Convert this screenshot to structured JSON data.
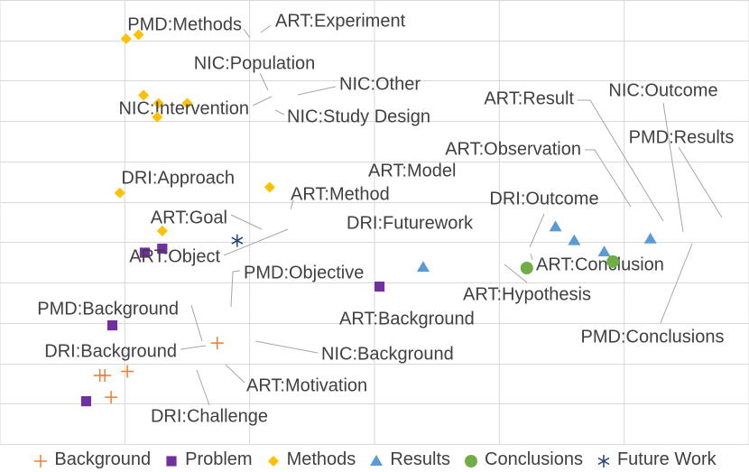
{
  "chart_data": {
    "type": "scatter",
    "title": "",
    "xlabel": "",
    "ylabel": "",
    "xlim": [
      -1,
      5
    ],
    "ylim": [
      -2.5,
      3
    ],
    "grid": {
      "horizontal": true,
      "vertical": true
    },
    "legend_position": "bottom",
    "colors": {
      "Background": "#ED7D31",
      "Problem": "#7030A0",
      "Methods": "#FFC000",
      "Results": "#5B9BD5",
      "Conclusions": "#70AD47",
      "Future Work": "#264478",
      "grid": "#D9D9D9",
      "leader": "#A6A6A6",
      "text": "#404040"
    },
    "series": [
      {
        "name": "Background",
        "marker": "plus",
        "points": [
          {
            "label": "ART:Background",
            "x": 0.74,
            "y": -1.25
          },
          {
            "label": "NIC:Background",
            "x": 0.02,
            "y": -1.6
          },
          {
            "label": "PMD:Background",
            "x": -0.16,
            "y": -1.65
          },
          {
            "label": "DRI:Background",
            "x": -0.2,
            "y": -1.65
          },
          {
            "label": "ART:Motivation",
            "x": -0.11,
            "y": -1.92
          }
        ]
      },
      {
        "name": "Problem",
        "marker": "square",
        "points": [
          {
            "label": "ART:Goal",
            "x": 0.16,
            "y": -0.13
          },
          {
            "label": "ART:Object",
            "x": 0.3,
            "y": -0.08
          },
          {
            "label": "PMD:Objective",
            "x": -0.1,
            "y": -1.03
          },
          {
            "label": "DRI:Challenge",
            "x": -0.31,
            "y": -1.97
          },
          {
            "label": "ART:Hypothesis",
            "x": 2.04,
            "y": -0.55
          }
        ]
      },
      {
        "name": "Methods",
        "marker": "diamond",
        "points": [
          {
            "label": "PMD:Methods",
            "x": 0.01,
            "y": 2.52
          },
          {
            "label": "ART:Experiment",
            "x": 0.11,
            "y": 2.57
          },
          {
            "label": "NIC:Population",
            "x": 0.15,
            "y": 1.82
          },
          {
            "label": "NIC:Other",
            "x": 0.5,
            "y": 1.72
          },
          {
            "label": "NIC:Intervention",
            "x": 0.27,
            "y": 1.72
          },
          {
            "label": "NIC:Study Design",
            "x": 0.26,
            "y": 1.55
          },
          {
            "label": "DRI:Approach",
            "x": -0.04,
            "y": 0.61
          },
          {
            "label": "ART:Model",
            "x": 1.16,
            "y": 0.68
          },
          {
            "label": "ART:Method",
            "x": 0.3,
            "y": 0.14
          }
        ]
      },
      {
        "name": "Results",
        "marker": "triangle",
        "points": [
          {
            "label": "ART:Result",
            "x": 3.6,
            "y": 0.02
          },
          {
            "label": "NIC:Outcome",
            "x": 3.84,
            "y": -0.12
          },
          {
            "label": "PMD:Results",
            "x": 4.21,
            "y": 0.04
          },
          {
            "label": "ART:Observation",
            "x": 3.45,
            "y": 0.19
          },
          {
            "label": "DRI:Outcome",
            "x": 2.39,
            "y": -0.31
          }
        ]
      },
      {
        "name": "Conclusions",
        "marker": "circle",
        "points": [
          {
            "label": "ART:Conclusion",
            "x": 3.22,
            "y": -0.32
          },
          {
            "label": "PMD:Conclusions",
            "x": 3.91,
            "y": -0.24
          }
        ]
      },
      {
        "name": "Future Work",
        "marker": "star",
        "points": [
          {
            "label": "DRI:Futurework",
            "x": 0.9,
            "y": 0.02
          }
        ]
      }
    ]
  }
}
